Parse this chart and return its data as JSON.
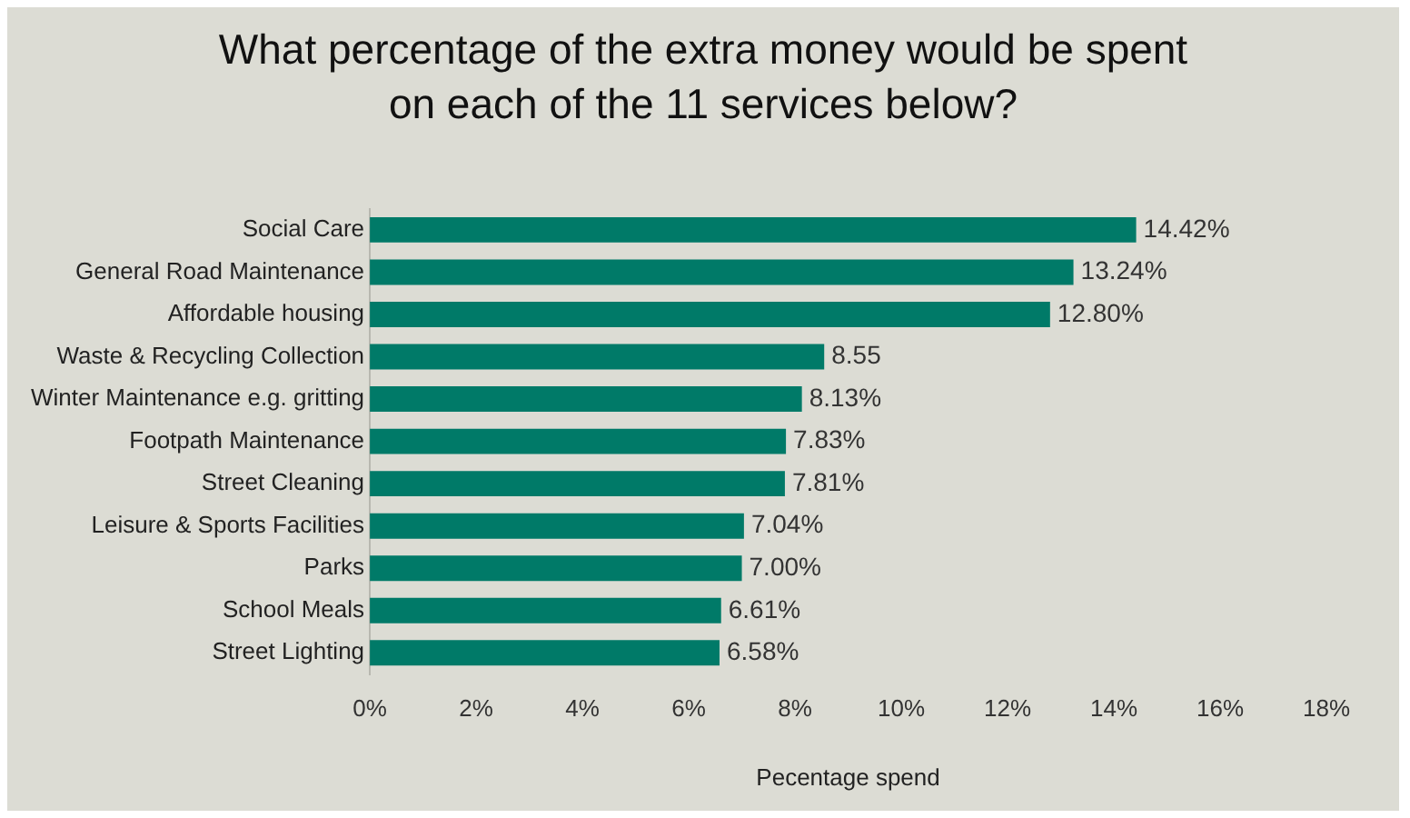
{
  "chart_data": {
    "type": "bar",
    "orientation": "horizontal",
    "title": "What percentage of the extra money would be spent on each of the 11 services below?",
    "xlabel": "Pecentage spend",
    "categories": [
      "Social Care",
      "General Road Maintenance",
      "Affordable housing",
      "Waste & Recycling Collection",
      "Winter Maintenance e.g. gritting",
      "Footpath Maintenance",
      "Street Cleaning",
      "Leisure & Sports Facilities",
      "Parks",
      "School Meals",
      "Street Lighting"
    ],
    "values": [
      14.42,
      13.24,
      12.8,
      8.55,
      8.13,
      7.83,
      7.81,
      7.04,
      7.0,
      6.61,
      6.58
    ],
    "value_labels": [
      "14.42%",
      "13.24%",
      "12.80%",
      "8.55",
      "8.13%",
      "7.83%",
      "7.81%",
      "7.04%",
      "7.00%",
      "6.61%",
      "6.58%"
    ],
    "color": "#007a68",
    "xlim": [
      0,
      18
    ],
    "xticks": [
      {
        "value": 0,
        "label": "0%"
      },
      {
        "value": 2,
        "label": "2%"
      },
      {
        "value": 4,
        "label": "4%"
      },
      {
        "value": 6,
        "label": "6%"
      },
      {
        "value": 8,
        "label": "8%"
      },
      {
        "value": 10,
        "label": "10%"
      },
      {
        "value": 12,
        "label": "12%"
      },
      {
        "value": 14,
        "label": "14%"
      },
      {
        "value": 16,
        "label": "16%"
      },
      {
        "value": 18,
        "label": "18%"
      }
    ],
    "grid": false,
    "legend": false
  }
}
